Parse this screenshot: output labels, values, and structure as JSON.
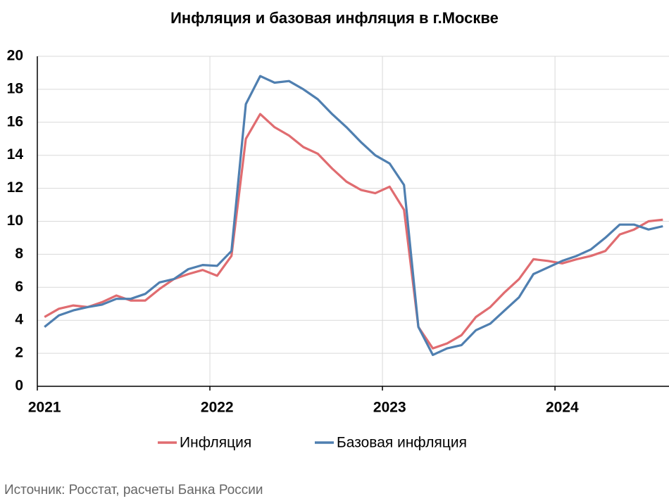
{
  "chart_data": {
    "type": "line",
    "title": "Инфляция и базовая инфляция в г.Москве",
    "source": "Источник: Росстат, расчеты Банка России",
    "categories": [
      "2021",
      null,
      null,
      null,
      null,
      null,
      null,
      null,
      null,
      null,
      null,
      null,
      "2022",
      null,
      null,
      null,
      null,
      null,
      null,
      null,
      null,
      null,
      null,
      null,
      "2023",
      null,
      null,
      null,
      null,
      null,
      null,
      null,
      null,
      null,
      null,
      null,
      "2024",
      null,
      null,
      null,
      null,
      null,
      null,
      null
    ],
    "series": [
      {
        "name": "Инфляция",
        "color": "#e06c70",
        "values": [
          4.2,
          4.7,
          4.9,
          4.8,
          5.1,
          5.5,
          5.2,
          5.2,
          5.9,
          6.5,
          6.8,
          7.05,
          6.7,
          7.9,
          15.0,
          16.5,
          15.7,
          15.2,
          14.5,
          14.1,
          13.2,
          12.4,
          11.9,
          11.7,
          12.1,
          10.7,
          3.6,
          2.3,
          2.6,
          3.1,
          4.2,
          4.8,
          5.7,
          6.5,
          7.7,
          7.6,
          7.45,
          7.7,
          7.9,
          8.2,
          9.2,
          9.5,
          10.0,
          10.1
        ]
      },
      {
        "name": "Базовая инфляция",
        "color": "#4f7fb0",
        "values": [
          3.6,
          4.3,
          4.6,
          4.8,
          4.95,
          5.3,
          5.3,
          5.6,
          6.3,
          6.5,
          7.1,
          7.35,
          7.3,
          8.2,
          17.1,
          18.8,
          18.4,
          18.5,
          18.0,
          17.4,
          16.5,
          15.7,
          14.8,
          14.0,
          13.5,
          12.2,
          3.6,
          1.9,
          2.3,
          2.5,
          3.4,
          3.8,
          4.6,
          5.4,
          6.8,
          7.2,
          7.6,
          7.9,
          8.3,
          9.0,
          9.8,
          9.8,
          9.5,
          9.7
        ]
      }
    ],
    "ylim": [
      0,
      20
    ],
    "yticks": [
      0,
      2,
      4,
      6,
      8,
      10,
      12,
      14,
      16,
      18,
      20
    ],
    "grid": true
  }
}
